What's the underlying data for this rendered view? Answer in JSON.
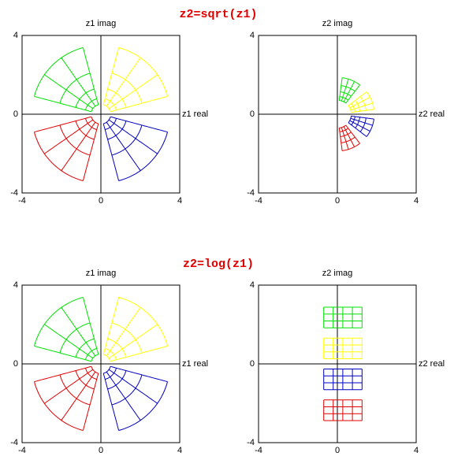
{
  "sections": [
    {
      "title": "z2=sqrt(z1)",
      "panels": [
        {
          "x_label": "z1 real",
          "y_label": "z1 imag",
          "xticks": [
            -4,
            0,
            4
          ],
          "yticks": [
            -4,
            0,
            4
          ]
        },
        {
          "x_label": "z2 real",
          "y_label": "z2 imag",
          "xticks": [
            -4,
            0,
            4
          ],
          "yticks": [
            -4,
            0,
            4
          ]
        }
      ]
    },
    {
      "title": "z2=log(z1)",
      "panels": [
        {
          "x_label": "z1 real",
          "y_label": "z1 imag",
          "xticks": [
            -4,
            0,
            4
          ],
          "yticks": [
            -4,
            0,
            4
          ]
        },
        {
          "x_label": "z2 real",
          "y_label": "z2 imag",
          "xticks": [
            -4,
            0,
            4
          ],
          "yticks": [
            -4,
            0,
            4
          ]
        }
      ]
    }
  ],
  "colors": [
    "#ffff00",
    "#00e000",
    "#e00000",
    "#0000c0"
  ]
}
